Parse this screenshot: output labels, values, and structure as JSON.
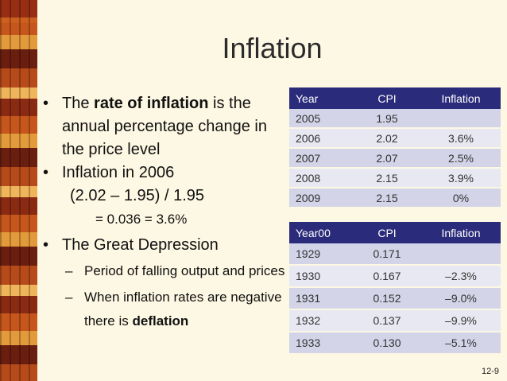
{
  "title": "Inflation",
  "bullets": {
    "b1_pre": "The ",
    "b1_bold": "rate of inflation",
    "b1_post": " is the annual percentage change in the price level",
    "b2": "Inflation in 2006",
    "b2_formula": "(2.02 – 1.95) / 1.95",
    "b2_result": "= 0.036 = 3.6%",
    "b3": "The Great Depression",
    "sub1": "Period of falling output and prices",
    "sub2_pre": "When inflation rates are negative there is ",
    "sub2_bold": "deflation"
  },
  "table1": {
    "headers": [
      "Year",
      "CPI",
      "Inflation"
    ],
    "rows": [
      [
        "2005",
        "1.95",
        ""
      ],
      [
        "2006",
        "2.02",
        "3.6%"
      ],
      [
        "2007",
        "2.07",
        "2.5%"
      ],
      [
        "2008",
        "2.15",
        "3.9%"
      ],
      [
        "2009",
        "2.15",
        "0%"
      ]
    ]
  },
  "table2": {
    "headers": [
      "Year00",
      "CPI",
      "Inflation"
    ],
    "rows": [
      [
        "1929",
        "0.171",
        ""
      ],
      [
        "1930",
        "0.167",
        "–2.3%"
      ],
      [
        "1931",
        "0.152",
        "–9.0%"
      ],
      [
        "1932",
        "0.137",
        "–9.9%"
      ],
      [
        "1933",
        "0.130",
        "–5.1%"
      ]
    ]
  },
  "page_number": "12-9",
  "colors": {
    "background": "#fdf8e3",
    "table_header": "#2b2b7c",
    "row_odd": "#d3d4e8",
    "row_even": "#e8e8f3"
  }
}
